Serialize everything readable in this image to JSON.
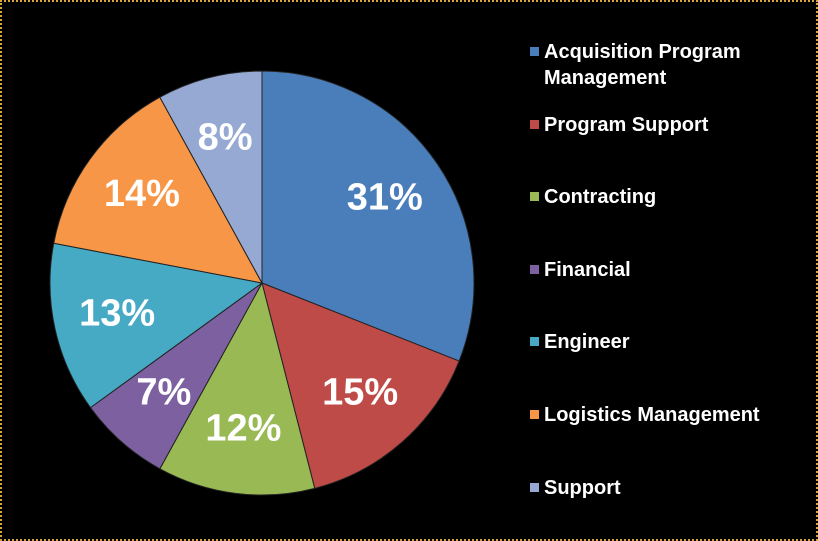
{
  "chart_data": {
    "type": "pie",
    "categories": [
      "Acquisition Program Management",
      "Program Support",
      "Contracting",
      "Financial",
      "Engineer",
      "Logistics Management",
      "Support"
    ],
    "values": [
      31,
      15,
      12,
      7,
      13,
      14,
      8
    ],
    "value_labels": [
      "31%",
      "15%",
      "12%",
      "7%",
      "13%",
      "14%",
      "8%"
    ],
    "colors": [
      "#4a7ebb",
      "#be4b48",
      "#98b954",
      "#7d60a0",
      "#46aac5",
      "#f79646",
      "#95a9d2"
    ],
    "legend": "right"
  }
}
